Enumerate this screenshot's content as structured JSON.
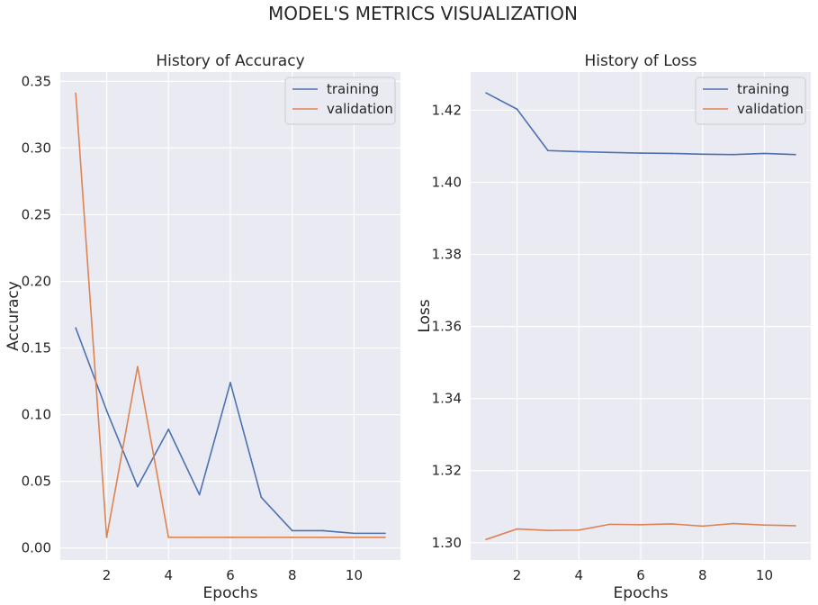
{
  "figure": {
    "suptitle": "MODEL'S METRICS VISUALIZATION"
  },
  "chart_data": [
    {
      "type": "line",
      "title": "History of Accuracy",
      "xlabel": "Epochs",
      "ylabel": "Accuracy",
      "x": [
        1,
        2,
        3,
        4,
        5,
        6,
        7,
        8,
        9,
        10,
        11
      ],
      "xlim": [
        0.5,
        11.5
      ],
      "ylim": [
        -0.009,
        0.357
      ],
      "xticks": [
        2,
        4,
        6,
        8,
        10
      ],
      "xtick_labels": [
        "2",
        "4",
        "6",
        "8",
        "10"
      ],
      "yticks": [
        0.0,
        0.05,
        0.1,
        0.15,
        0.2,
        0.25,
        0.3,
        0.35
      ],
      "ytick_labels": [
        "0.00",
        "0.05",
        "0.10",
        "0.15",
        "0.20",
        "0.25",
        "0.30",
        "0.35"
      ],
      "grid": true,
      "legend_position": "top-right",
      "series": [
        {
          "name": "training",
          "color": "#4c72b0",
          "values": [
            0.165,
            0.103,
            0.046,
            0.089,
            0.04,
            0.124,
            0.038,
            0.013,
            0.013,
            0.011,
            0.011
          ]
        },
        {
          "name": "validation",
          "color": "#dd8452",
          "values": [
            0.341,
            0.008,
            0.136,
            0.008,
            0.008,
            0.008,
            0.008,
            0.008,
            0.008,
            0.008,
            0.008
          ]
        }
      ]
    },
    {
      "type": "line",
      "title": "History of Loss",
      "xlabel": "Epochs",
      "ylabel": "Loss",
      "x": [
        1,
        2,
        3,
        4,
        5,
        6,
        7,
        8,
        9,
        10,
        11
      ],
      "xlim": [
        0.5,
        11.5
      ],
      "ylim": [
        1.2952,
        1.4306
      ],
      "xticks": [
        2,
        4,
        6,
        8,
        10
      ],
      "xtick_labels": [
        "2",
        "4",
        "6",
        "8",
        "10"
      ],
      "yticks": [
        1.3,
        1.32,
        1.34,
        1.36,
        1.38,
        1.4,
        1.42
      ],
      "ytick_labels": [
        "1.30",
        "1.32",
        "1.34",
        "1.36",
        "1.38",
        "1.40",
        "1.42"
      ],
      "grid": true,
      "legend_position": "top-right",
      "series": [
        {
          "name": "training",
          "color": "#4c72b0",
          "values": [
            1.4248,
            1.4203,
            1.4088,
            1.4085,
            1.4083,
            1.4081,
            1.408,
            1.4078,
            1.4077,
            1.408,
            1.4077
          ]
        },
        {
          "name": "validation",
          "color": "#dd8452",
          "values": [
            1.3009,
            1.3038,
            1.3034,
            1.3035,
            1.3051,
            1.305,
            1.3052,
            1.3046,
            1.3053,
            1.3049,
            1.3047
          ]
        }
      ]
    }
  ]
}
